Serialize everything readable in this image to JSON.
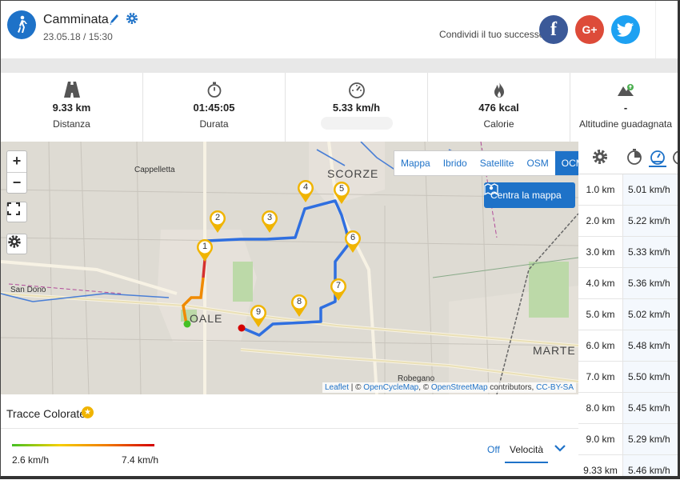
{
  "header": {
    "activity_icon": "walking-person-icon",
    "title": "Camminata",
    "date": "23.05.18 / 15:30",
    "share_text": "Condividi il tuo successo",
    "social": [
      {
        "name": "facebook",
        "glyph": "f",
        "color": "#3b5998"
      },
      {
        "name": "google-plus",
        "glyph": "G+",
        "color": "#dd4b39"
      },
      {
        "name": "twitter",
        "glyph": "twitter-bird-icon",
        "color": "#1da1f2"
      }
    ]
  },
  "stats": [
    {
      "icon": "road-icon",
      "value": "9.33 km",
      "label": "Distanza"
    },
    {
      "icon": "stopwatch-icon",
      "value": "01:45:05",
      "label": "Durata"
    },
    {
      "icon": "speedometer-icon",
      "value": "5.33 km/h",
      "label": ""
    },
    {
      "icon": "flame-icon",
      "value": "476 kcal",
      "label": "Calorie"
    },
    {
      "icon": "mountain-icon",
      "value": "-",
      "label": "Altitudine guadagnata"
    }
  ],
  "map": {
    "zoom_in": "+",
    "zoom_out": "−",
    "layers": [
      "Mappa",
      "Ibrido",
      "Satellite",
      "OSM",
      "OCM"
    ],
    "active_layer": "OCM",
    "center_button": "Centra la mappa",
    "place_labels": [
      "Cappelletta",
      "SCORZE",
      "San Dono",
      "OALE",
      "MARTE",
      "Robegano"
    ],
    "markers": [
      "1",
      "2",
      "3",
      "4",
      "5",
      "6",
      "7",
      "8",
      "9"
    ],
    "attribution": {
      "leaflet": "Leaflet",
      "sep1": " | © ",
      "ocm": "OpenCycleMap",
      "sep2": ", © ",
      "osm": "OpenStreetMap",
      "contrib": " contributors, ",
      "license": "CC-BY-SA"
    }
  },
  "side": {
    "tabs": [
      "gear-icon",
      "clock-icon",
      "speedometer-icon"
    ],
    "splits": [
      {
        "km": "1.0 km",
        "speed": "5.01 km/h"
      },
      {
        "km": "2.0 km",
        "speed": "5.22 km/h"
      },
      {
        "km": "3.0 km",
        "speed": "5.33 km/h"
      },
      {
        "km": "4.0 km",
        "speed": "5.36 km/h"
      },
      {
        "km": "5.0 km",
        "speed": "5.02 km/h"
      },
      {
        "km": "6.0 km",
        "speed": "5.48 km/h"
      },
      {
        "km": "7.0 km",
        "speed": "5.50 km/h"
      },
      {
        "km": "8.0 km",
        "speed": "5.45 km/h"
      },
      {
        "km": "9.0 km",
        "speed": "5.29 km/h"
      },
      {
        "km": "9.33 km",
        "speed": "5.46 km/h"
      }
    ]
  },
  "bottom": {
    "title": "Tracce Colorate",
    "min_label": "2.6 km/h",
    "max_label": "7.4 km/h",
    "off_label": "Off",
    "selected_metric": "Velocità"
  },
  "colors": {
    "accent": "#1e72c8",
    "route": "#2f6fe0",
    "marker": "#f0b400"
  }
}
